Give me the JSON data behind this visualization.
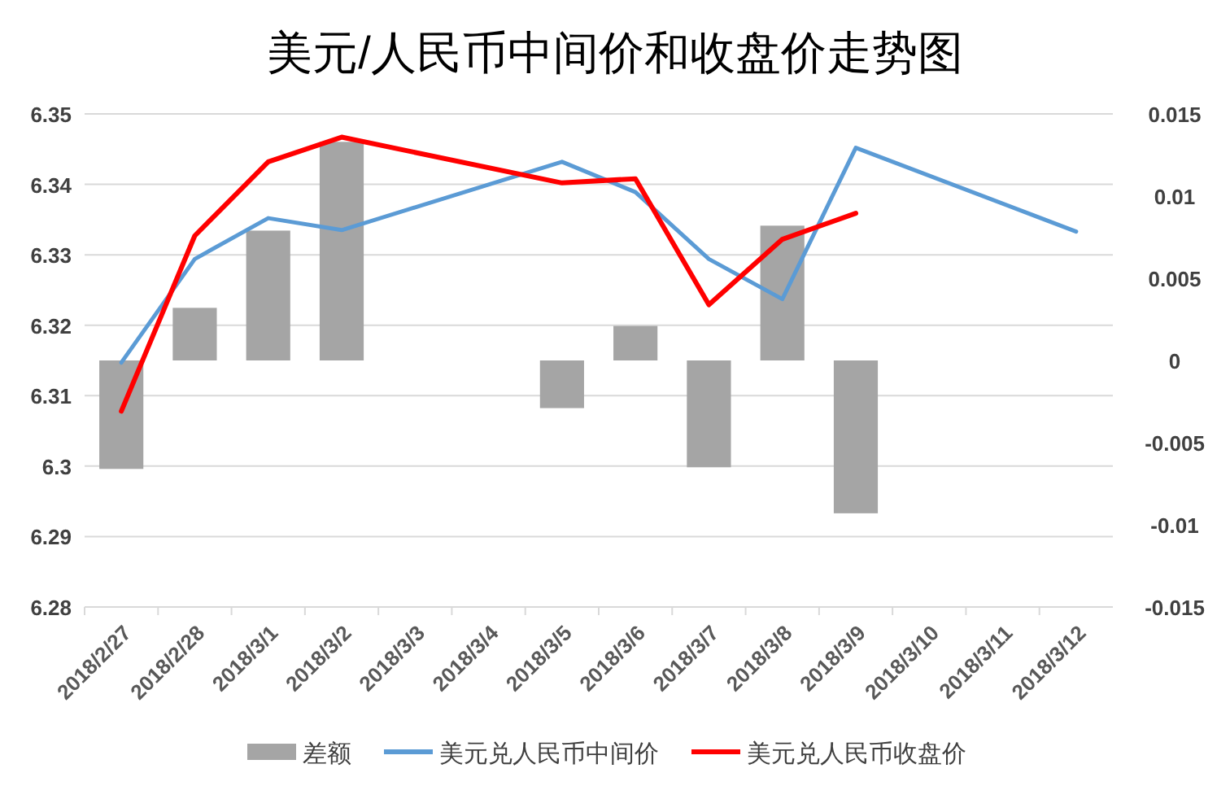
{
  "chart_data": {
    "type": "bar",
    "title": "美元/人民币中间价和收盘价走势图",
    "categories": [
      "2018/2/27",
      "2018/2/28",
      "2018/3/1",
      "2018/3/2",
      "2018/3/3",
      "2018/3/4",
      "2018/3/5",
      "2018/3/6",
      "2018/3/7",
      "2018/3/8",
      "2018/3/9",
      "2018/3/10",
      "2018/3/11",
      "2018/3/12"
    ],
    "series": [
      {
        "name": "差额",
        "axis": "y2",
        "color": "#a5a5a5",
        "values": [
          -0.0066,
          0.0032,
          0.0079,
          0.0133,
          null,
          null,
          -0.0029,
          0.0021,
          -0.0065,
          0.0082,
          -0.0093,
          null,
          null,
          null
        ]
      },
      {
        "name": "美元兑人民币中间价",
        "type": "line",
        "color": "#5b9bd5",
        "values": [
          6.3147,
          6.3294,
          6.3352,
          6.3335,
          null,
          null,
          6.3432,
          6.3389,
          6.3294,
          6.3237,
          6.3452,
          null,
          null,
          6.3333
        ]
      },
      {
        "name": "美元兑人民币收盘价",
        "type": "line",
        "color": "#ff0000",
        "values": [
          6.3078,
          6.3327,
          6.3432,
          6.3467,
          null,
          null,
          6.3402,
          6.3408,
          6.3229,
          6.3322,
          6.3359,
          null,
          null,
          null
        ]
      }
    ],
    "ylim": [
      6.28,
      6.35
    ],
    "yticks": [
      6.28,
      6.29,
      6.3,
      6.31,
      6.32,
      6.33,
      6.34,
      6.35
    ],
    "y2lim": [
      -0.015,
      0.015
    ],
    "y2ticks": [
      -0.015,
      -0.01,
      -0.005,
      0,
      0.005,
      0.01,
      0.015
    ],
    "grid": "y",
    "legend": "bottom"
  }
}
